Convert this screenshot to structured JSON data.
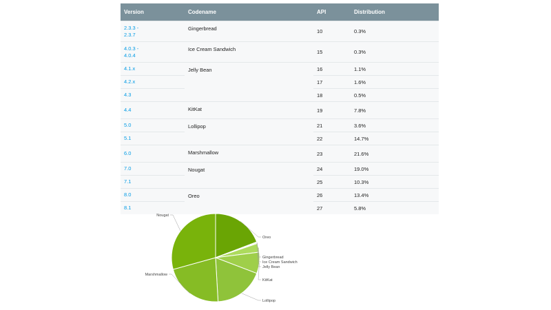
{
  "table": {
    "headers": [
      "Version",
      "Codename",
      "API",
      "Distribution"
    ],
    "rows": [
      {
        "version": "2.3.3 -\n2.3.7",
        "codename": "Gingerbread",
        "api": "10",
        "distribution": "0.3%"
      },
      {
        "version": "4.0.3 -\n4.0.4",
        "codename": "Ice Cream Sandwich",
        "api": "15",
        "distribution": "0.3%"
      },
      {
        "version": "4.1.x",
        "codename": "Jelly Bean",
        "api": "16",
        "distribution": "1.1%"
      },
      {
        "version": "4.2.x",
        "codename": "",
        "api": "17",
        "distribution": "1.6%"
      },
      {
        "version": "4.3",
        "codename": "",
        "api": "18",
        "distribution": "0.5%"
      },
      {
        "version": "4.4",
        "codename": "KitKat",
        "api": "19",
        "distribution": "7.8%"
      },
      {
        "version": "5.0",
        "codename": "Lollipop",
        "api": "21",
        "distribution": "3.6%"
      },
      {
        "version": "5.1",
        "codename": "",
        "api": "22",
        "distribution": "14.7%"
      },
      {
        "version": "6.0",
        "codename": "Marshmallow",
        "api": "23",
        "distribution": "21.6%"
      },
      {
        "version": "7.0",
        "codename": "Nougat",
        "api": "24",
        "distribution": "19.0%"
      },
      {
        "version": "7.1",
        "codename": "",
        "api": "25",
        "distribution": "10.3%"
      },
      {
        "version": "8.0",
        "codename": "Oreo",
        "api": "26",
        "distribution": "13.4%"
      },
      {
        "version": "8.1",
        "codename": "",
        "api": "27",
        "distribution": "5.8%"
      }
    ]
  },
  "chart_data": {
    "type": "pie",
    "title": "",
    "categories": [
      "Oreo",
      "Gingerbread",
      "Ice Cream Sandwich",
      "Jelly Bean",
      "KitKat",
      "Lollipop",
      "Marshmallow",
      "Nougat"
    ],
    "values": [
      19.2,
      0.3,
      0.3,
      3.2,
      7.8,
      18.3,
      21.6,
      29.3
    ],
    "colors": [
      "#6aa504",
      "#c8e38c",
      "#bcdc78",
      "#addb5d",
      "#9fcf4a",
      "#8fc33a",
      "#86bc25",
      "#79b30b"
    ],
    "legend": "leader-line labels"
  }
}
